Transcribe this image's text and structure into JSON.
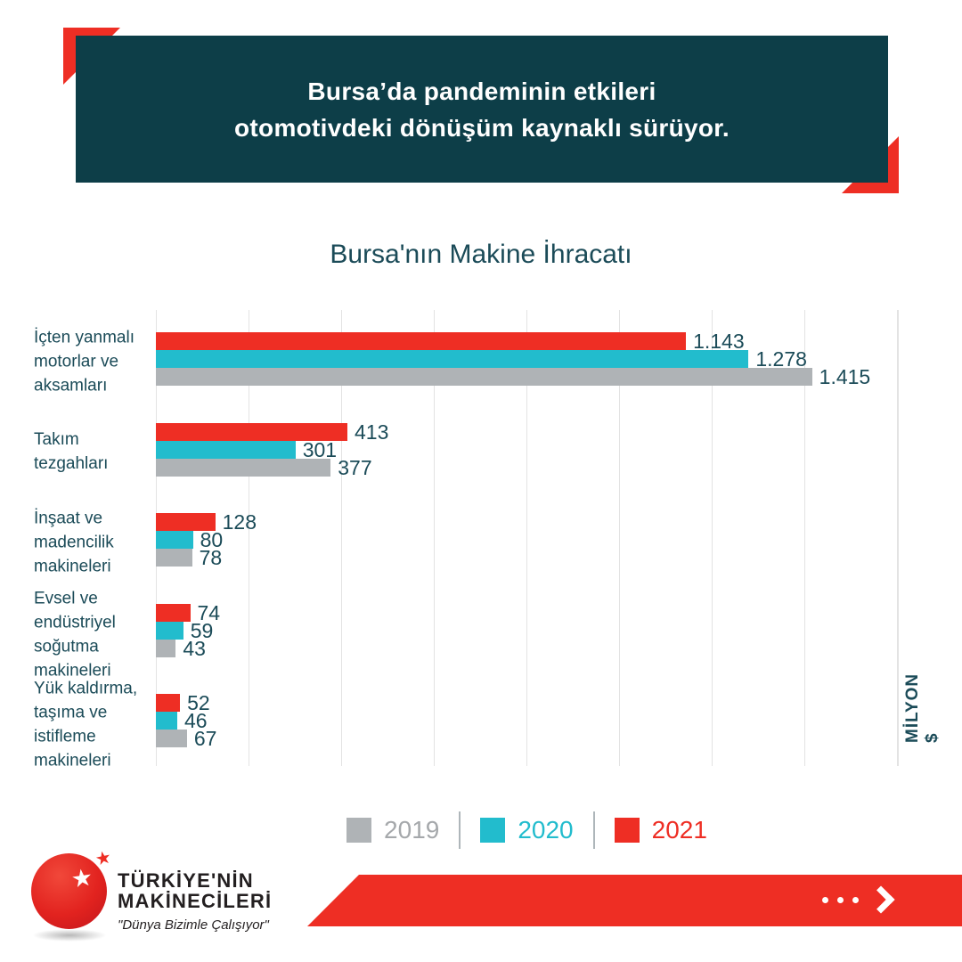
{
  "header": {
    "line1": "Bursa’da pandeminin etkileri",
    "line2": "otomotivdeki dönüşüm kaynaklı sürüyor."
  },
  "chart_data": {
    "type": "bar",
    "orientation": "horizontal",
    "title": "Bursa'nın Makine İhracatı",
    "unit_label": "MİLYON $",
    "xlim": [
      0,
      1600
    ],
    "gridline_step": 200,
    "grid": true,
    "legend_position": "bottom",
    "categories": [
      "İçten yanmalı\nmotorlar ve\naksamları",
      "Takım\ntezgahları",
      "İnşaat ve\nmadencilik\nmakineleri",
      "Evsel ve\nendüstriyel\nsoğutma\nmakineleri",
      "Yük kaldırma,\ntaşıma ve\nistifleme\nmakineleri"
    ],
    "series": [
      {
        "name": "2021",
        "color": "#ee2e24",
        "values": [
          1143,
          413,
          128,
          74,
          52
        ],
        "labels": [
          "1.143",
          "413",
          "128",
          "74",
          "52"
        ]
      },
      {
        "name": "2020",
        "color": "#22bccd",
        "values": [
          1278,
          301,
          80,
          59,
          46
        ],
        "labels": [
          "1.278",
          "301",
          "80",
          "59",
          "46"
        ]
      },
      {
        "name": "2019",
        "color": "#afb3b6",
        "values": [
          1415,
          377,
          78,
          43,
          67
        ],
        "labels": [
          "1.415",
          "377",
          "78",
          "43",
          "67"
        ]
      }
    ]
  },
  "legend": {
    "items": [
      {
        "label": "2019",
        "swatch_color": "#afb3b6",
        "text_color": "#a5a8ab"
      },
      {
        "label": "2020",
        "swatch_color": "#22bccd",
        "text_color": "#22bccd"
      },
      {
        "label": "2021",
        "swatch_color": "#ee2e24",
        "text_color": "#ee2e24"
      }
    ]
  },
  "footer": {
    "brand_line1": "TÜRKİYE'NİN",
    "brand_line2": "MAKİNECİLERİ",
    "tagline": "\"Dünya Bizimle Çalışıyor\"",
    "star_glyph": "★"
  }
}
